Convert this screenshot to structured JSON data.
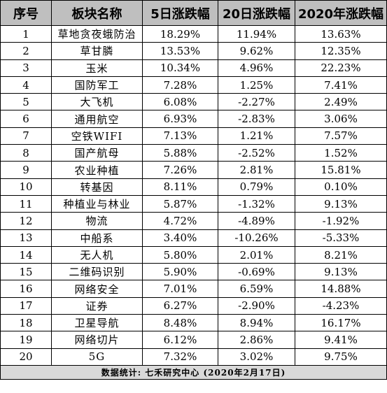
{
  "table": {
    "headers": [
      "序号",
      "板块名称",
      "5日涨跌幅",
      "20日涨跌幅",
      "2020年涨跌幅"
    ],
    "rows": [
      [
        "1",
        "草地贪夜蛾防治",
        "18.29%",
        "11.94%",
        "13.63%"
      ],
      [
        "2",
        "草甘膦",
        "13.53%",
        "9.62%",
        "12.35%"
      ],
      [
        "3",
        "玉米",
        "10.34%",
        "4.96%",
        "22.23%"
      ],
      [
        "4",
        "国防军工",
        "7.28%",
        "1.25%",
        "7.41%"
      ],
      [
        "5",
        "大飞机",
        "6.08%",
        "-2.27%",
        "2.49%"
      ],
      [
        "6",
        "通用航空",
        "6.93%",
        "-2.83%",
        "3.06%"
      ],
      [
        "7",
        "空铁WIFI",
        "7.13%",
        "1.21%",
        "7.57%"
      ],
      [
        "8",
        "国产航母",
        "5.88%",
        "-2.52%",
        "1.52%"
      ],
      [
        "9",
        "农业种植",
        "7.26%",
        "2.81%",
        "15.81%"
      ],
      [
        "10",
        "转基因",
        "8.11%",
        "0.79%",
        "0.10%"
      ],
      [
        "11",
        "种植业与林业",
        "5.87%",
        "-1.32%",
        "9.13%"
      ],
      [
        "12",
        "物流",
        "4.72%",
        "-4.89%",
        "-1.92%"
      ],
      [
        "13",
        "中船系",
        "3.40%",
        "-10.26%",
        "-5.33%"
      ],
      [
        "14",
        "无人机",
        "5.80%",
        "2.01%",
        "8.21%"
      ],
      [
        "15",
        "二维码识别",
        "5.90%",
        "-0.69%",
        "9.13%"
      ],
      [
        "16",
        "网络安全",
        "7.01%",
        "6.59%",
        "14.88%"
      ],
      [
        "17",
        "证券",
        "6.27%",
        "-2.90%",
        "-4.23%"
      ],
      [
        "18",
        "卫星导航",
        "8.48%",
        "8.94%",
        "16.17%"
      ],
      [
        "19",
        "网络切片",
        "6.12%",
        "2.86%",
        "9.41%"
      ],
      [
        "20",
        "5G",
        "7.32%",
        "3.02%",
        "9.75%"
      ]
    ],
    "footer": "数据统计: 七禾研究中心 (2020年2月17日)"
  },
  "colors": {
    "header_bg": "#bfbfbf",
    "footer_bg": "#d9d9d9",
    "border": "#000000"
  }
}
